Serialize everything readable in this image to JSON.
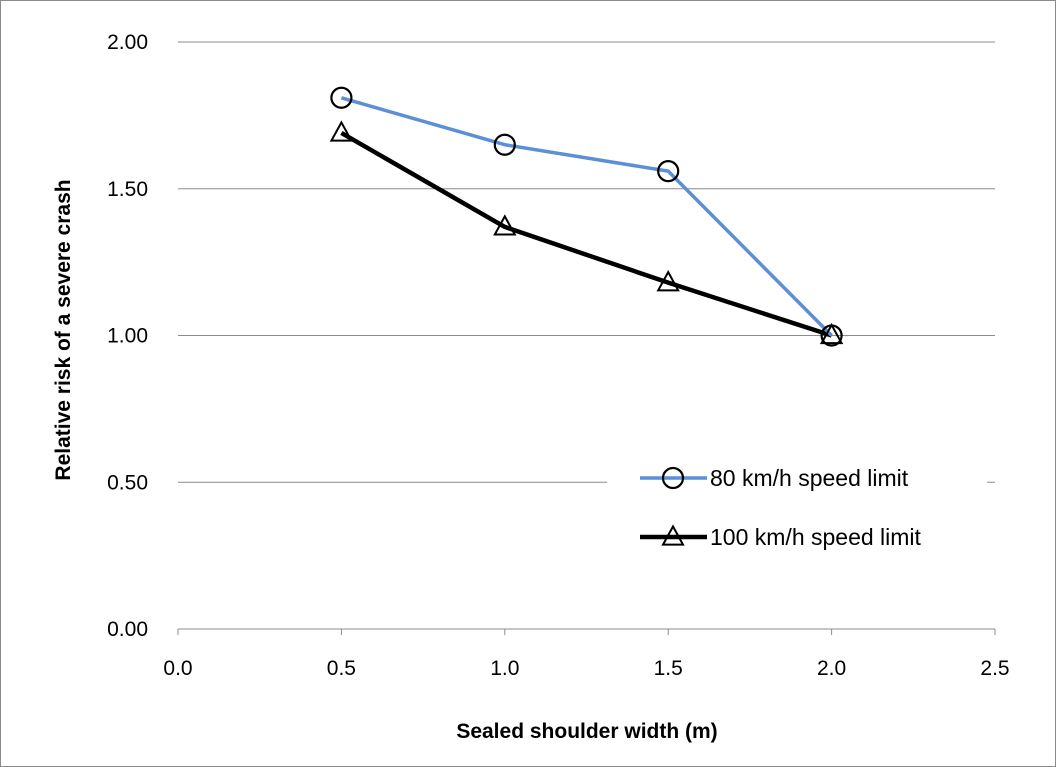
{
  "chart_data": {
    "type": "line",
    "title": "",
    "xlabel": "Sealed shoulder width (m)",
    "ylabel": "Relative risk of a severe crash",
    "xlim": [
      0.0,
      2.5
    ],
    "ylim": [
      0.0,
      2.0
    ],
    "x_ticks": [
      "0.0",
      "0.5",
      "1.0",
      "1.5",
      "2.0",
      "2.5"
    ],
    "y_ticks": [
      "0.00",
      "0.50",
      "1.00",
      "1.50",
      "2.00"
    ],
    "grid": "horizontal",
    "legend_position": "right",
    "series": [
      {
        "name": "80 km/h speed limit",
        "color": "#5b8fd6",
        "marker": "circle",
        "x": [
          0.5,
          1.0,
          1.5,
          2.0
        ],
        "values": [
          1.81,
          1.65,
          1.56,
          1.0
        ]
      },
      {
        "name": "100 km/h speed limit",
        "color": "#000000",
        "marker": "triangle",
        "x": [
          0.5,
          1.0,
          1.5,
          2.0
        ],
        "values": [
          1.69,
          1.37,
          1.18,
          1.0
        ]
      }
    ]
  }
}
